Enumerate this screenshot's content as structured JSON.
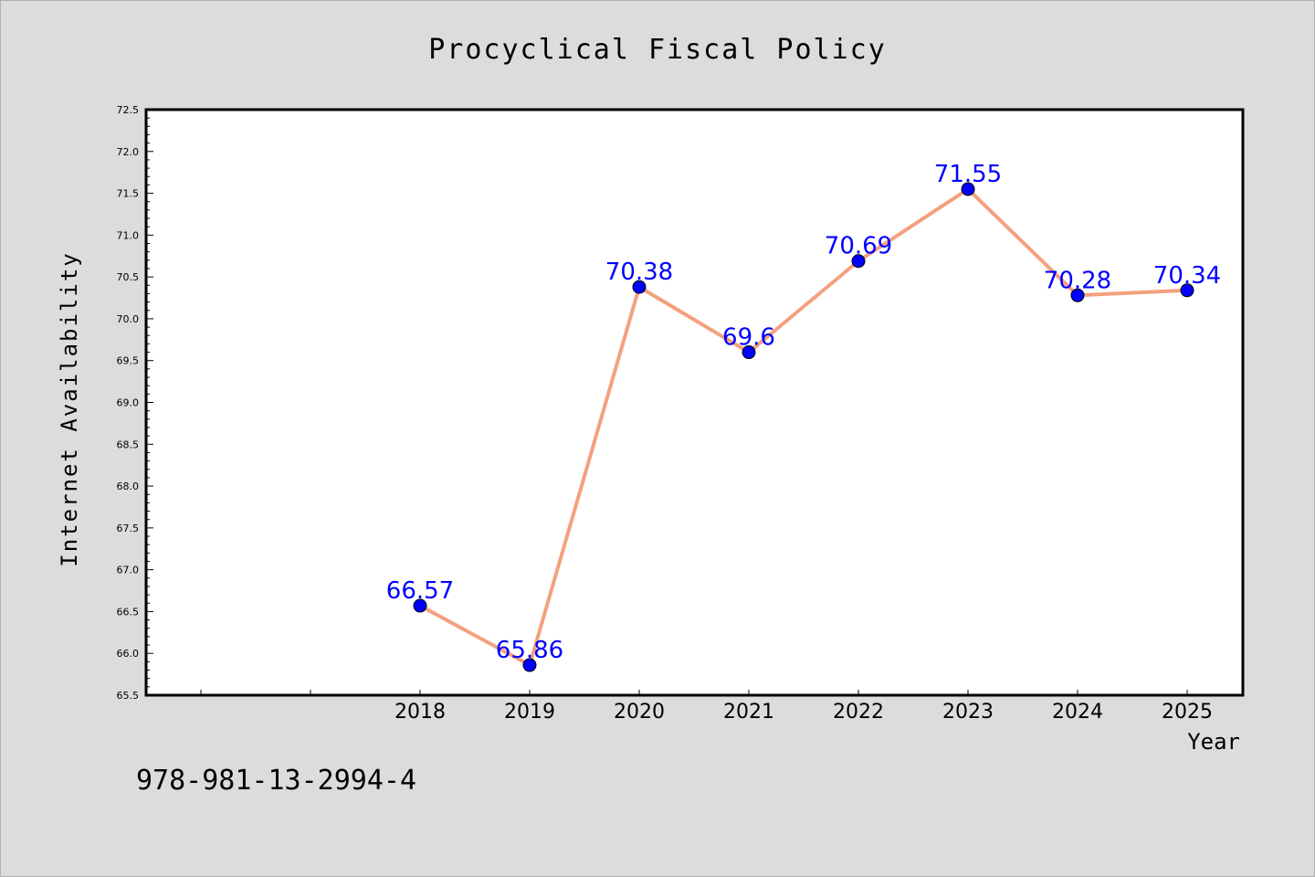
{
  "footer_text": "978-981-13-2994-4",
  "chart_data": {
    "type": "line",
    "title": "Procyclical Fiscal Policy",
    "xlabel": "Year",
    "ylabel": "Internet Availability",
    "x": [
      "2018",
      "2019",
      "2020",
      "2021",
      "2022",
      "2023",
      "2024",
      "2025"
    ],
    "series": [
      {
        "values": [
          66.57,
          65.86,
          70.38,
          69.6,
          70.69,
          71.55,
          70.28,
          70.34
        ],
        "labels": [
          "66.57",
          "65.86",
          "70.38",
          "69.6",
          "70.69",
          "71.55",
          "70.28",
          "70.34"
        ],
        "line_color": "#f4a07f",
        "marker_color": "#0000ff"
      }
    ],
    "ylim": [
      65.5,
      72.5
    ],
    "y_ticks": [
      "65.5",
      "66.0",
      "66.5",
      "67.0",
      "67.5",
      "68.0",
      "68.5",
      "69.0",
      "69.5",
      "70.0",
      "70.5",
      "71.0",
      "71.5",
      "72.0",
      "72.5"
    ],
    "grid": false,
    "legend": "none"
  }
}
